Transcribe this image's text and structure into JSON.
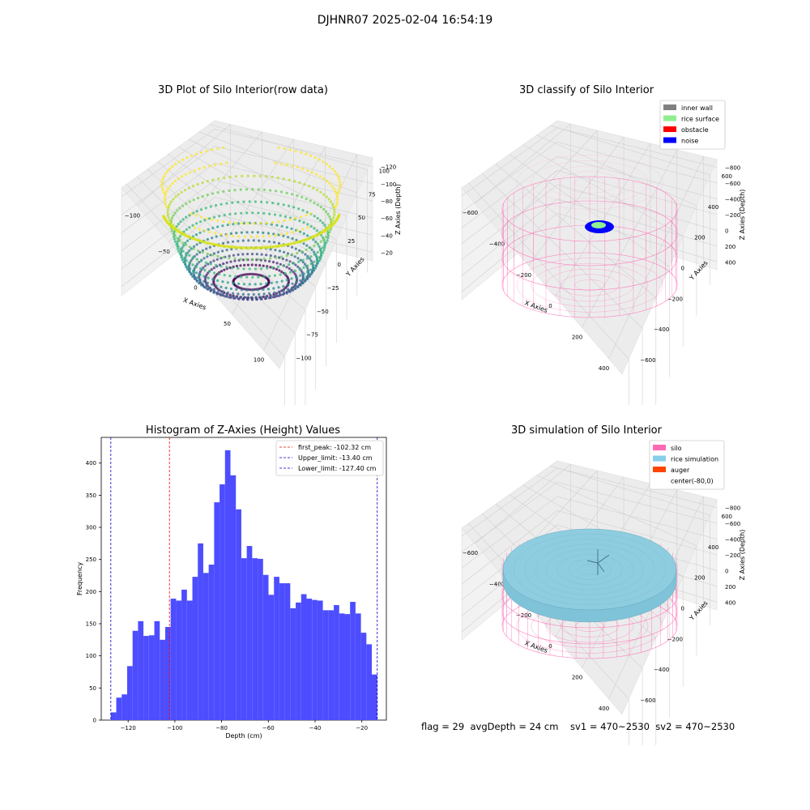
{
  "figure": {
    "suptitle": "DJHNR07 2025-02-04 16:54:19",
    "footer": "flag = 29  avgDepth = 24 cm    sv1 = 470~2530  sv2 = 470~2530"
  },
  "chart_data": [
    {
      "type": "scatter",
      "subtype": "3d",
      "title": "3D Plot of Silo Interior(row data)",
      "xlabel": "X Axies",
      "ylabel": "Y Axies",
      "zlabel": "Z Axies (Depth)",
      "xticks": [
        "−100",
        "−50",
        "0",
        "50",
        "100"
      ],
      "yticks": [
        "100",
        "75",
        "50",
        "25",
        "0",
        "−25",
        "−50",
        "−75",
        "−100"
      ],
      "zticks": [
        "−20",
        "−40",
        "−60",
        "−80",
        "−100",
        "−120"
      ],
      "xlim": [
        -125,
        125
      ],
      "ylim": [
        -100,
        100
      ],
      "zlim": [
        -135,
        -13
      ],
      "colormap": "viridis",
      "grid": true
    },
    {
      "type": "scatter",
      "subtype": "3d",
      "title": "3D classify of Silo Interior",
      "xlabel": "X Axies",
      "ylabel": "Y Axies",
      "zlabel": "Z Axies (Depth)",
      "xticks": [
        "−600",
        "−400",
        "−200",
        "0",
        "200",
        "400"
      ],
      "yticks": [
        "600",
        "400",
        "200",
        "0",
        "−200",
        "−400",
        "−600"
      ],
      "zticks": [
        "400",
        "200",
        "0",
        "−200",
        "−400",
        "−600",
        "−800"
      ],
      "legend_position": "top-right",
      "legend": [
        {
          "label": "inner wall",
          "color": "#808080"
        },
        {
          "label": "rice surface",
          "color": "#90ee90"
        },
        {
          "label": "obstacle",
          "color": "#ff0000"
        },
        {
          "label": "noise",
          "color": "#0000ff"
        }
      ],
      "wire_color": "#ff69b4",
      "grid": true
    },
    {
      "type": "bar",
      "subtype": "histogram",
      "title": "Histogram of Z-Axies (Height) Values",
      "xlabel": "Depth (cm)",
      "ylabel": "Frequency",
      "xlim": [
        -131.5,
        -9.5
      ],
      "ylim": [
        0,
        440
      ],
      "xticks": [
        -120,
        -100,
        -80,
        -60,
        -40,
        -20
      ],
      "xtick_labels": [
        "−120",
        "−100",
        "−80",
        "−60",
        "−40",
        "−20"
      ],
      "yticks": [
        0,
        50,
        100,
        150,
        200,
        250,
        300,
        350,
        400
      ],
      "bin_start": -127.4,
      "bin_end": -13.4,
      "values": [
        12,
        35,
        40,
        84,
        139,
        154,
        131,
        132,
        154,
        125,
        145,
        189,
        186,
        203,
        186,
        223,
        275,
        229,
        242,
        339,
        367,
        420,
        381,
        328,
        252,
        271,
        252,
        251,
        226,
        195,
        223,
        213,
        213,
        174,
        183,
        196,
        189,
        187,
        186,
        171,
        171,
        179,
        166,
        165,
        184,
        166,
        136,
        118,
        71
      ],
      "bar_color": "#4d4dff",
      "lines": [
        {
          "label": "first_peak: -102.32 cm",
          "x": -102.32,
          "color": "#ff0000"
        },
        {
          "label": "Upper_limit: -13.40 cm",
          "x": -13.4,
          "color": "#0000cc"
        },
        {
          "label": "Lower_limit: -127.40 cm",
          "x": -127.4,
          "color": "#0000cc"
        }
      ],
      "legend_position": "top-right"
    },
    {
      "type": "scatter",
      "subtype": "3d",
      "title": "3D simulation of Silo Interior",
      "xlabel": "X Axies",
      "ylabel": "Y Axies",
      "zlabel": "Z Axies (Depth)",
      "xticks": [
        "−600",
        "−400",
        "−200",
        "0",
        "200",
        "400"
      ],
      "yticks": [
        "600",
        "400",
        "200",
        "0",
        "−200",
        "−400",
        "−600"
      ],
      "zticks": [
        "400",
        "200",
        "0",
        "−200",
        "−400",
        "−600",
        "−800"
      ],
      "legend_position": "top-right",
      "legend": [
        {
          "label": "silo",
          "color": "#ff69b4"
        },
        {
          "label": "rice simulation",
          "color": "#87ceeb"
        },
        {
          "label": "auger",
          "color": "#ff4500"
        },
        {
          "label": "center(-80,0)",
          "color": ""
        }
      ],
      "surface_color": "#8ecde0",
      "grid": true
    }
  ]
}
